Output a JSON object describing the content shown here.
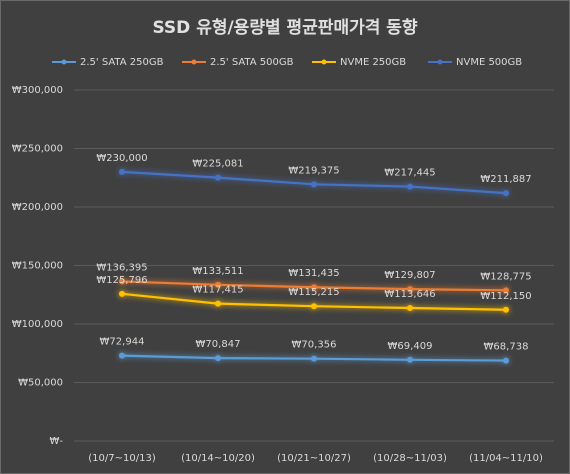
{
  "chart_data": {
    "type": "line",
    "title": "SSD 유형/용량별 평균판매가격 동향",
    "categories": [
      "(10/7~10/13)",
      "(10/14~10/20)",
      "(10/21~10/27)",
      "(10/28~11/03)",
      "(11/04~11/10)"
    ],
    "series": [
      {
        "name": "2.5' SATA 250GB",
        "color": "#5b9bd5",
        "values": [
          72944,
          70847,
          70356,
          69409,
          68738
        ],
        "value_labels": [
          "₩72,944",
          "₩70,847",
          "₩70,356",
          "₩69,409",
          "₩68,738"
        ]
      },
      {
        "name": "2.5' SATA 500GB",
        "color": "#ed7d31",
        "values": [
          136395,
          133511,
          131435,
          129807,
          128775
        ],
        "value_labels": [
          "₩136,395",
          "₩133,511",
          "₩131,435",
          "₩129,807",
          "₩128,775"
        ]
      },
      {
        "name": "NVME 250GB",
        "color": "#ffc000",
        "values": [
          125796,
          117415,
          115215,
          113646,
          112150
        ],
        "value_labels": [
          "₩125,796",
          "₩117,415",
          "₩115,215",
          "₩113,646",
          "₩112,150"
        ]
      },
      {
        "name": "NVME 500GB",
        "color": "#4472c4",
        "values": [
          230000,
          225081,
          219375,
          217445,
          211887
        ],
        "value_labels": [
          "₩230,000",
          "₩225,081",
          "₩219,375",
          "₩217,445",
          "₩211,887"
        ]
      }
    ],
    "ylim": [
      0,
      300000
    ],
    "yticks": [
      {
        "value": 0,
        "label": "₩-"
      },
      {
        "value": 50000,
        "label": "₩50,000"
      },
      {
        "value": 100000,
        "label": "₩100,000"
      },
      {
        "value": 150000,
        "label": "₩150,000"
      },
      {
        "value": 200000,
        "label": "₩200,000"
      },
      {
        "value": 250000,
        "label": "₩250,000"
      },
      {
        "value": 300000,
        "label": "₩300,000"
      }
    ],
    "grid": true,
    "legend": "top"
  }
}
